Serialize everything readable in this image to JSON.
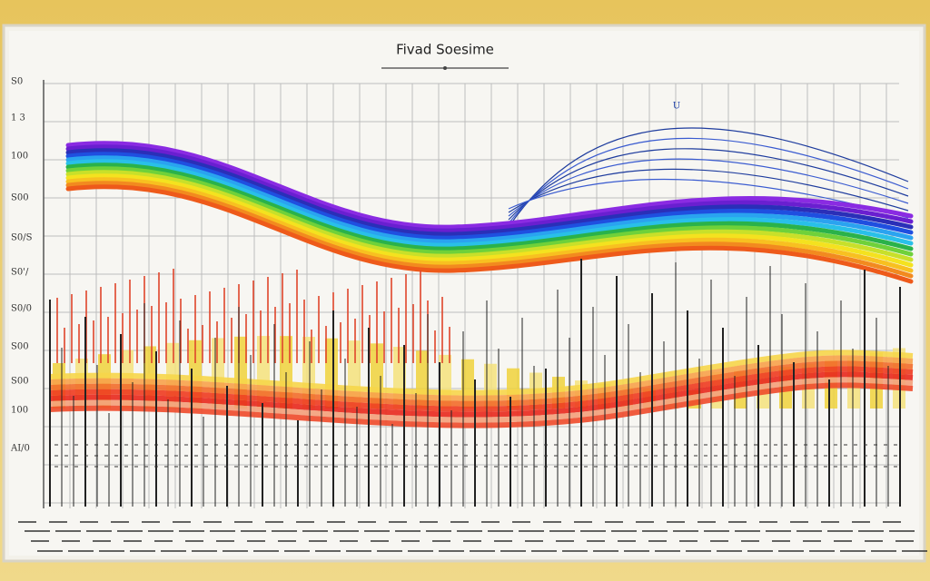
{
  "header": {
    "title": "Fivad Soesime",
    "marker": "U"
  },
  "axis": {
    "labels": [
      "S0",
      "1 3",
      "100",
      "S00",
      "S0/S",
      "S0'/",
      "S0/0",
      "S00",
      "S00",
      "100",
      "AI/0"
    ]
  }
}
